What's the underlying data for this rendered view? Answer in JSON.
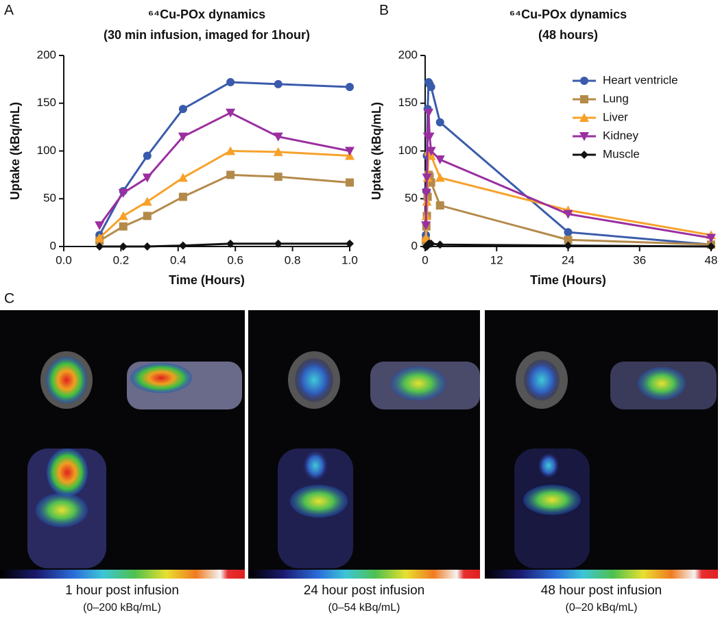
{
  "chart_data": [
    {
      "type": "line",
      "panel_label": "A",
      "title": "⁶⁴Cu-POx dynamics",
      "subtitle": "(30 min infusion, imaged for 1hour)",
      "x_label": "Time (Hours)",
      "y_label": "Uptake (kBq/mL)",
      "x": [
        0.125,
        0.208,
        0.292,
        0.417,
        0.583,
        0.75,
        1.0
      ],
      "xlim": [
        0,
        1.0
      ],
      "xticks": [
        {
          "value": 0,
          "label": "0.0"
        },
        0.2,
        0.4,
        0.6,
        0.8,
        {
          "value": 1.0,
          "label": "1.0"
        }
      ],
      "ylim": [
        0,
        200
      ],
      "yticks": [
        0,
        50,
        100,
        150,
        200
      ],
      "series": [
        {
          "name": "Heart ventricle",
          "color": "#3a5bab",
          "marker": "circle",
          "values": [
            12,
            58,
            95,
            144,
            172,
            170,
            167
          ]
        },
        {
          "name": "Lung",
          "color": "#b48a4a",
          "marker": "square",
          "values": [
            6,
            21,
            32,
            52,
            75,
            73,
            67
          ]
        },
        {
          "name": "Liver",
          "color": "#f7a12a",
          "marker": "triangle-up",
          "values": [
            9,
            32,
            47,
            72,
            100,
            99,
            95
          ]
        },
        {
          "name": "Kidney",
          "color": "#9a2fa0",
          "marker": "triangle-down",
          "values": [
            22,
            56,
            72,
            115,
            140,
            115,
            100
          ]
        },
        {
          "name": "Muscle",
          "color": "#111111",
          "marker": "diamond",
          "values": [
            0,
            0,
            0,
            1,
            3,
            3,
            3
          ]
        }
      ]
    },
    {
      "type": "line",
      "panel_label": "B",
      "title": "⁶⁴Cu-POx dynamics",
      "subtitle": "(48 hours)",
      "x_label": "Time (Hours)",
      "y_label": "Uptake (kBq/mL)",
      "legend": "upper right",
      "x": [
        0.125,
        0.208,
        0.292,
        0.417,
        0.583,
        0.75,
        1.0,
        2.5,
        24,
        48
      ],
      "xlim": [
        0,
        48
      ],
      "xticks": [
        0,
        12,
        24,
        36,
        48
      ],
      "ylim": [
        0,
        200
      ],
      "yticks": [
        0,
        50,
        100,
        150,
        200
      ],
      "series": [
        {
          "name": "Heart ventricle",
          "color": "#3a5bab",
          "marker": "circle",
          "values": [
            12,
            58,
            95,
            144,
            172,
            170,
            167,
            130,
            15,
            2
          ]
        },
        {
          "name": "Lung",
          "color": "#b48a4a",
          "marker": "square",
          "values": [
            6,
            21,
            32,
            52,
            75,
            73,
            67,
            43,
            7,
            2
          ]
        },
        {
          "name": "Liver",
          "color": "#f7a12a",
          "marker": "triangle-up",
          "values": [
            9,
            32,
            47,
            72,
            100,
            99,
            95,
            72,
            38,
            12
          ]
        },
        {
          "name": "Kidney",
          "color": "#9a2fa0",
          "marker": "triangle-down",
          "values": [
            22,
            56,
            72,
            115,
            140,
            115,
            100,
            91,
            34,
            9
          ]
        },
        {
          "name": "Muscle",
          "color": "#111111",
          "marker": "diamond",
          "values": [
            0,
            0,
            0,
            1,
            3,
            3,
            3,
            2,
            1,
            0
          ]
        }
      ]
    }
  ],
  "panel_c": {
    "label": "C",
    "panels": [
      {
        "caption": "1 hour post infusion",
        "range": "(0–200 kBq/mL)"
      },
      {
        "caption": "24 hour post infusion",
        "range": "(0–54 kBq/mL)"
      },
      {
        "caption": "48 hour post infusion",
        "range": "(0–20 kBq/mL)"
      }
    ]
  }
}
